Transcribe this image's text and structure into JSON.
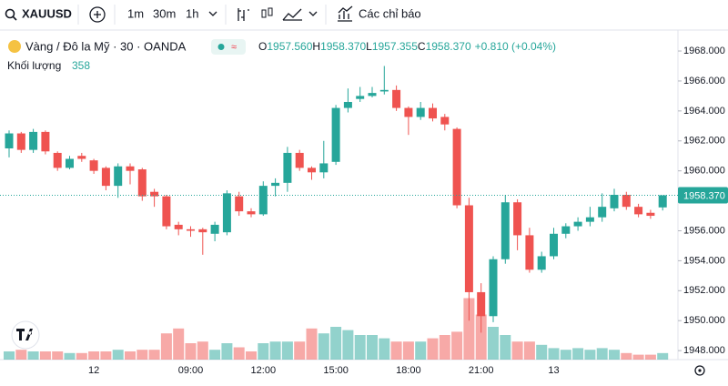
{
  "toolbar": {
    "symbol": "XAUUSD",
    "intervals": [
      "1m",
      "30m",
      "1h"
    ],
    "indicators": "Các chỉ báo"
  },
  "chart_data": {
    "type": "candlestick",
    "title": "Vàng / Đô la Mỹ · 30 · OANDA",
    "ohlc_legend": [
      {
        "key": "O",
        "value": "1957.560"
      },
      {
        "key": "H",
        "value": "1958.370"
      },
      {
        "key": "L",
        "value": "1957.355"
      },
      {
        "key": "C",
        "value": "1958.370"
      }
    ],
    "change": "+0.810 (+0.04%)",
    "volume_label": "Khối lượng",
    "categories": [
      null,
      null,
      null,
      null,
      null,
      null,
      null,
      "12",
      null,
      null,
      null,
      null,
      null,
      null,
      null,
      "09:00",
      null,
      null,
      null,
      null,
      null,
      "12:00",
      null,
      null,
      null,
      null,
      null,
      "15:00",
      null,
      null,
      null,
      null,
      null,
      "18:00",
      null,
      null,
      null,
      null,
      null,
      "21:00",
      null,
      null,
      null,
      null,
      null,
      "13",
      null,
      null,
      null,
      null,
      null,
      null,
      null,
      null,
      null
    ],
    "open": [
      1961.5,
      1962.5,
      1961.4,
      1962.6,
      1961.2,
      1960.2,
      1961.0,
      1960.7,
      1960.2,
      1959.0,
      1960.3,
      1960.1,
      1958.6,
      1958.3,
      1956.4,
      1956.1,
      1956.1,
      1955.8,
      1955.9,
      1958.3,
      1957.3,
      1957.1,
      1959.0,
      1959.2,
      1961.2,
      1960.2,
      1959.9,
      1960.6,
      1964.2,
      1964.8,
      1965.0,
      1965.3,
      1965.4,
      1964.2,
      1963.6,
      1964.2,
      1963.6,
      1962.8,
      1957.7,
      1951.9,
      1950.3,
      1954.1,
      1957.9,
      1955.7,
      1953.4,
      1954.3,
      1955.8,
      1956.3,
      1956.6,
      1956.9,
      1957.5,
      1958.4,
      1957.6,
      1957.2,
      1957.56
    ],
    "high": [
      1962.7,
      1962.6,
      1962.8,
      1962.7,
      1961.3,
      1961.0,
      1961.2,
      1960.8,
      1960.3,
      1960.5,
      1960.5,
      1960.2,
      1958.8,
      1958.4,
      1956.6,
      1956.3,
      1956.2,
      1956.6,
      1958.7,
      1958.6,
      1957.5,
      1959.3,
      1959.5,
      1961.6,
      1961.4,
      1960.3,
      1962.0,
      1964.4,
      1965.5,
      1965.6,
      1965.6,
      1967.0,
      1965.7,
      1964.3,
      1964.6,
      1964.5,
      1963.8,
      1962.9,
      1958.2,
      1952.5,
      1954.3,
      1958.4,
      1958.1,
      1956.2,
      1954.6,
      1956.2,
      1956.5,
      1956.9,
      1957.6,
      1958.5,
      1958.8,
      1958.6,
      1957.8,
      1957.4,
      1958.37
    ],
    "low": [
      1960.9,
      1961.2,
      1961.2,
      1961.1,
      1960.0,
      1960.1,
      1960.6,
      1959.8,
      1958.7,
      1958.2,
      1959.1,
      1958.0,
      1957.6,
      1956.1,
      1955.7,
      1955.6,
      1954.4,
      1955.3,
      1955.7,
      1957.0,
      1956.9,
      1957.0,
      1958.3,
      1958.6,
      1960.0,
      1959.4,
      1959.5,
      1960.4,
      1963.9,
      1964.6,
      1964.9,
      1965.1,
      1964.0,
      1962.4,
      1963.4,
      1963.3,
      1962.7,
      1957.5,
      1950.0,
      1949.2,
      1949.9,
      1953.8,
      1954.7,
      1953.2,
      1953.2,
      1954.1,
      1955.5,
      1956.0,
      1956.3,
      1956.6,
      1957.3,
      1957.4,
      1956.9,
      1956.8,
      1957.355
    ],
    "close": [
      1962.5,
      1961.4,
      1962.6,
      1961.3,
      1960.2,
      1960.8,
      1960.8,
      1960.0,
      1959.0,
      1960.3,
      1960.0,
      1958.3,
      1958.3,
      1956.3,
      1956.1,
      1956.0,
      1955.9,
      1956.4,
      1958.5,
      1957.3,
      1957.1,
      1959.0,
      1959.2,
      1961.2,
      1960.2,
      1959.9,
      1960.5,
      1964.2,
      1964.6,
      1965.0,
      1965.2,
      1965.4,
      1964.2,
      1963.6,
      1964.2,
      1963.5,
      1963.1,
      1957.7,
      1951.9,
      1950.3,
      1954.1,
      1957.9,
      1955.7,
      1953.4,
      1954.3,
      1955.8,
      1956.3,
      1956.6,
      1956.9,
      1957.6,
      1958.4,
      1957.6,
      1957.1,
      1957.0,
      1958.37
    ],
    "volume": [
      450,
      540,
      450,
      450,
      450,
      360,
      360,
      450,
      450,
      540,
      450,
      540,
      540,
      1440,
      1710,
      900,
      990,
      540,
      900,
      675,
      450,
      900,
      990,
      990,
      990,
      1710,
      1440,
      1800,
      1620,
      1350,
      1350,
      1170,
      990,
      990,
      990,
      1170,
      1350,
      1530,
      3375,
      2475,
      1800,
      1350,
      990,
      990,
      810,
      630,
      540,
      630,
      540,
      630,
      540,
      360,
      270,
      270,
      358
    ],
    "up_color": "#26a69a",
    "down_color": "#ef5350",
    "ylim": [
      1947.4,
      1969.4
    ],
    "yticks": [
      {
        "value": 1948,
        "label": "1948.000"
      },
      {
        "value": 1950,
        "label": "1950.000"
      },
      {
        "value": 1952,
        "label": "1952.000"
      },
      {
        "value": 1954,
        "label": "1954.000"
      },
      {
        "value": 1956,
        "label": "1956.000"
      },
      {
        "value": 1958,
        "label": "1958.000"
      },
      {
        "value": 1960,
        "label": "1960.000"
      },
      {
        "value": 1962,
        "label": "1962.000"
      },
      {
        "value": 1964,
        "label": "1964.000"
      },
      {
        "value": 1966,
        "label": "1966.000"
      },
      {
        "value": 1968,
        "label": "1968.000"
      }
    ],
    "volume_lim": [
      0,
      4500
    ],
    "last_price": {
      "value": 1958.37,
      "label": "1958.370"
    }
  }
}
